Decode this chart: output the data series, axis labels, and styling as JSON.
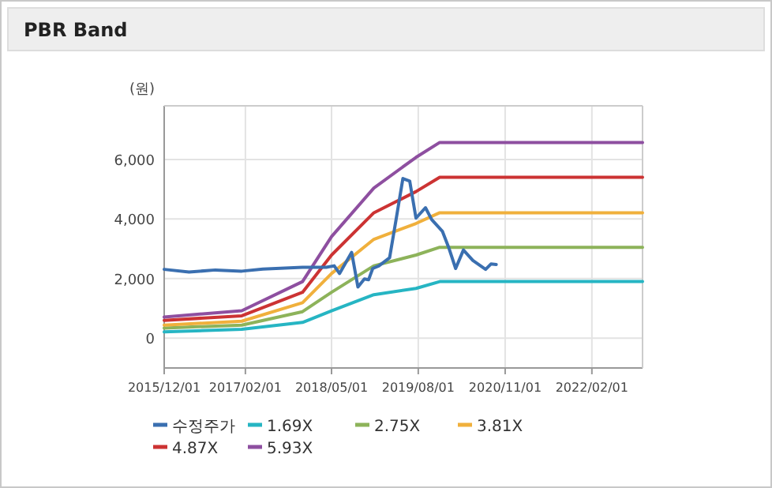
{
  "chart_data": {
    "type": "line",
    "title": "PBR Band",
    "ylabel": "(원)",
    "xlim": [
      "2015-12-01",
      "2022-10-26"
    ],
    "xticks": [
      {
        "value": "2015-12-01",
        "label": "2015/12/01"
      },
      {
        "value": "2017-02-01",
        "label": "2017/02/01"
      },
      {
        "value": "2018-05-01",
        "label": "2018/05/01"
      },
      {
        "value": "2019-08-01",
        "label": "2019/08/01"
      },
      {
        "value": "2020-11-01",
        "label": "2020/11/01"
      },
      {
        "value": "2022-02-01",
        "label": "2022/02/01"
      }
    ],
    "ylim": [
      -1000,
      7800
    ],
    "yticks": [
      0,
      {
        "value": 2000,
        "label": "2,000"
      },
      {
        "value": 4000,
        "label": "4,000"
      },
      {
        "value": 6000,
        "label": "6,000"
      }
    ],
    "grid": true,
    "legend": "bottom",
    "series": [
      {
        "name": "수정주가",
        "color": "#3a6fb0",
        "x": [
          "2015-12-01",
          "2016-04-10",
          "2016-08-27",
          "2017-01-13",
          "2017-05-04",
          "2017-11-29",
          "2018-04-03",
          "2018-05-15",
          "2018-06-12",
          "2018-08-15",
          "2018-09-17",
          "2018-10-21",
          "2018-11-12",
          "2018-12-04",
          "2019-01-06",
          "2019-03-03",
          "2019-04-05",
          "2019-05-12",
          "2019-06-17",
          "2019-07-20",
          "2019-09-08",
          "2019-10-11",
          "2019-12-06",
          "2020-01-08",
          "2020-02-14",
          "2020-03-26",
          "2020-05-15",
          "2020-07-21",
          "2020-08-18",
          "2020-09-15"
        ],
        "values": [
          2310,
          2220,
          2290,
          2250,
          2320,
          2380,
          2380,
          2430,
          2170,
          2880,
          1720,
          1990,
          1960,
          2340,
          2430,
          2700,
          3940,
          5360,
          5270,
          4030,
          4380,
          3980,
          3590,
          3050,
          2340,
          2960,
          2610,
          2310,
          2490,
          2470
        ]
      },
      {
        "name": "1.69X",
        "color": "#26b5c3",
        "x": [
          "2015-12-01",
          "2017-01-13",
          "2017-11-29",
          "2018-05-01",
          "2018-12-10",
          "2019-07-20",
          "2019-11-22",
          "2022-10-26"
        ],
        "values": [
          210,
          300,
          530,
          920,
          1460,
          1670,
          1900,
          1900
        ]
      },
      {
        "name": "2.75X",
        "color": "#8db35a",
        "x": [
          "2015-12-01",
          "2017-01-13",
          "2017-11-29",
          "2018-05-01",
          "2018-12-10",
          "2019-07-20",
          "2019-11-22",
          "2022-10-26"
        ],
        "values": [
          340,
          440,
          890,
          1540,
          2430,
          2790,
          3050,
          3050
        ]
      },
      {
        "name": "3.81X",
        "color": "#f0b03c",
        "x": [
          "2015-12-01",
          "2017-01-13",
          "2017-11-29",
          "2018-05-01",
          "2018-12-10",
          "2019-07-20",
          "2019-11-22",
          "2022-10-26"
        ],
        "values": [
          440,
          570,
          1190,
          2170,
          3320,
          3850,
          4210,
          4210
        ]
      },
      {
        "name": "4.87X",
        "color": "#cc3333",
        "x": [
          "2015-12-01",
          "2017-01-13",
          "2017-11-29",
          "2018-05-01",
          "2018-12-10",
          "2019-07-20",
          "2019-11-22",
          "2022-10-26"
        ],
        "values": [
          600,
          750,
          1540,
          2790,
          4210,
          4920,
          5400,
          5400
        ]
      },
      {
        "name": "5.93X",
        "color": "#8e4fa0",
        "x": [
          "2015-12-01",
          "2017-01-13",
          "2017-11-29",
          "2018-05-01",
          "2018-12-10",
          "2019-07-20",
          "2019-11-22",
          "2022-10-26"
        ],
        "values": [
          710,
          920,
          1900,
          3410,
          5040,
          6070,
          6570,
          6570
        ]
      }
    ]
  }
}
